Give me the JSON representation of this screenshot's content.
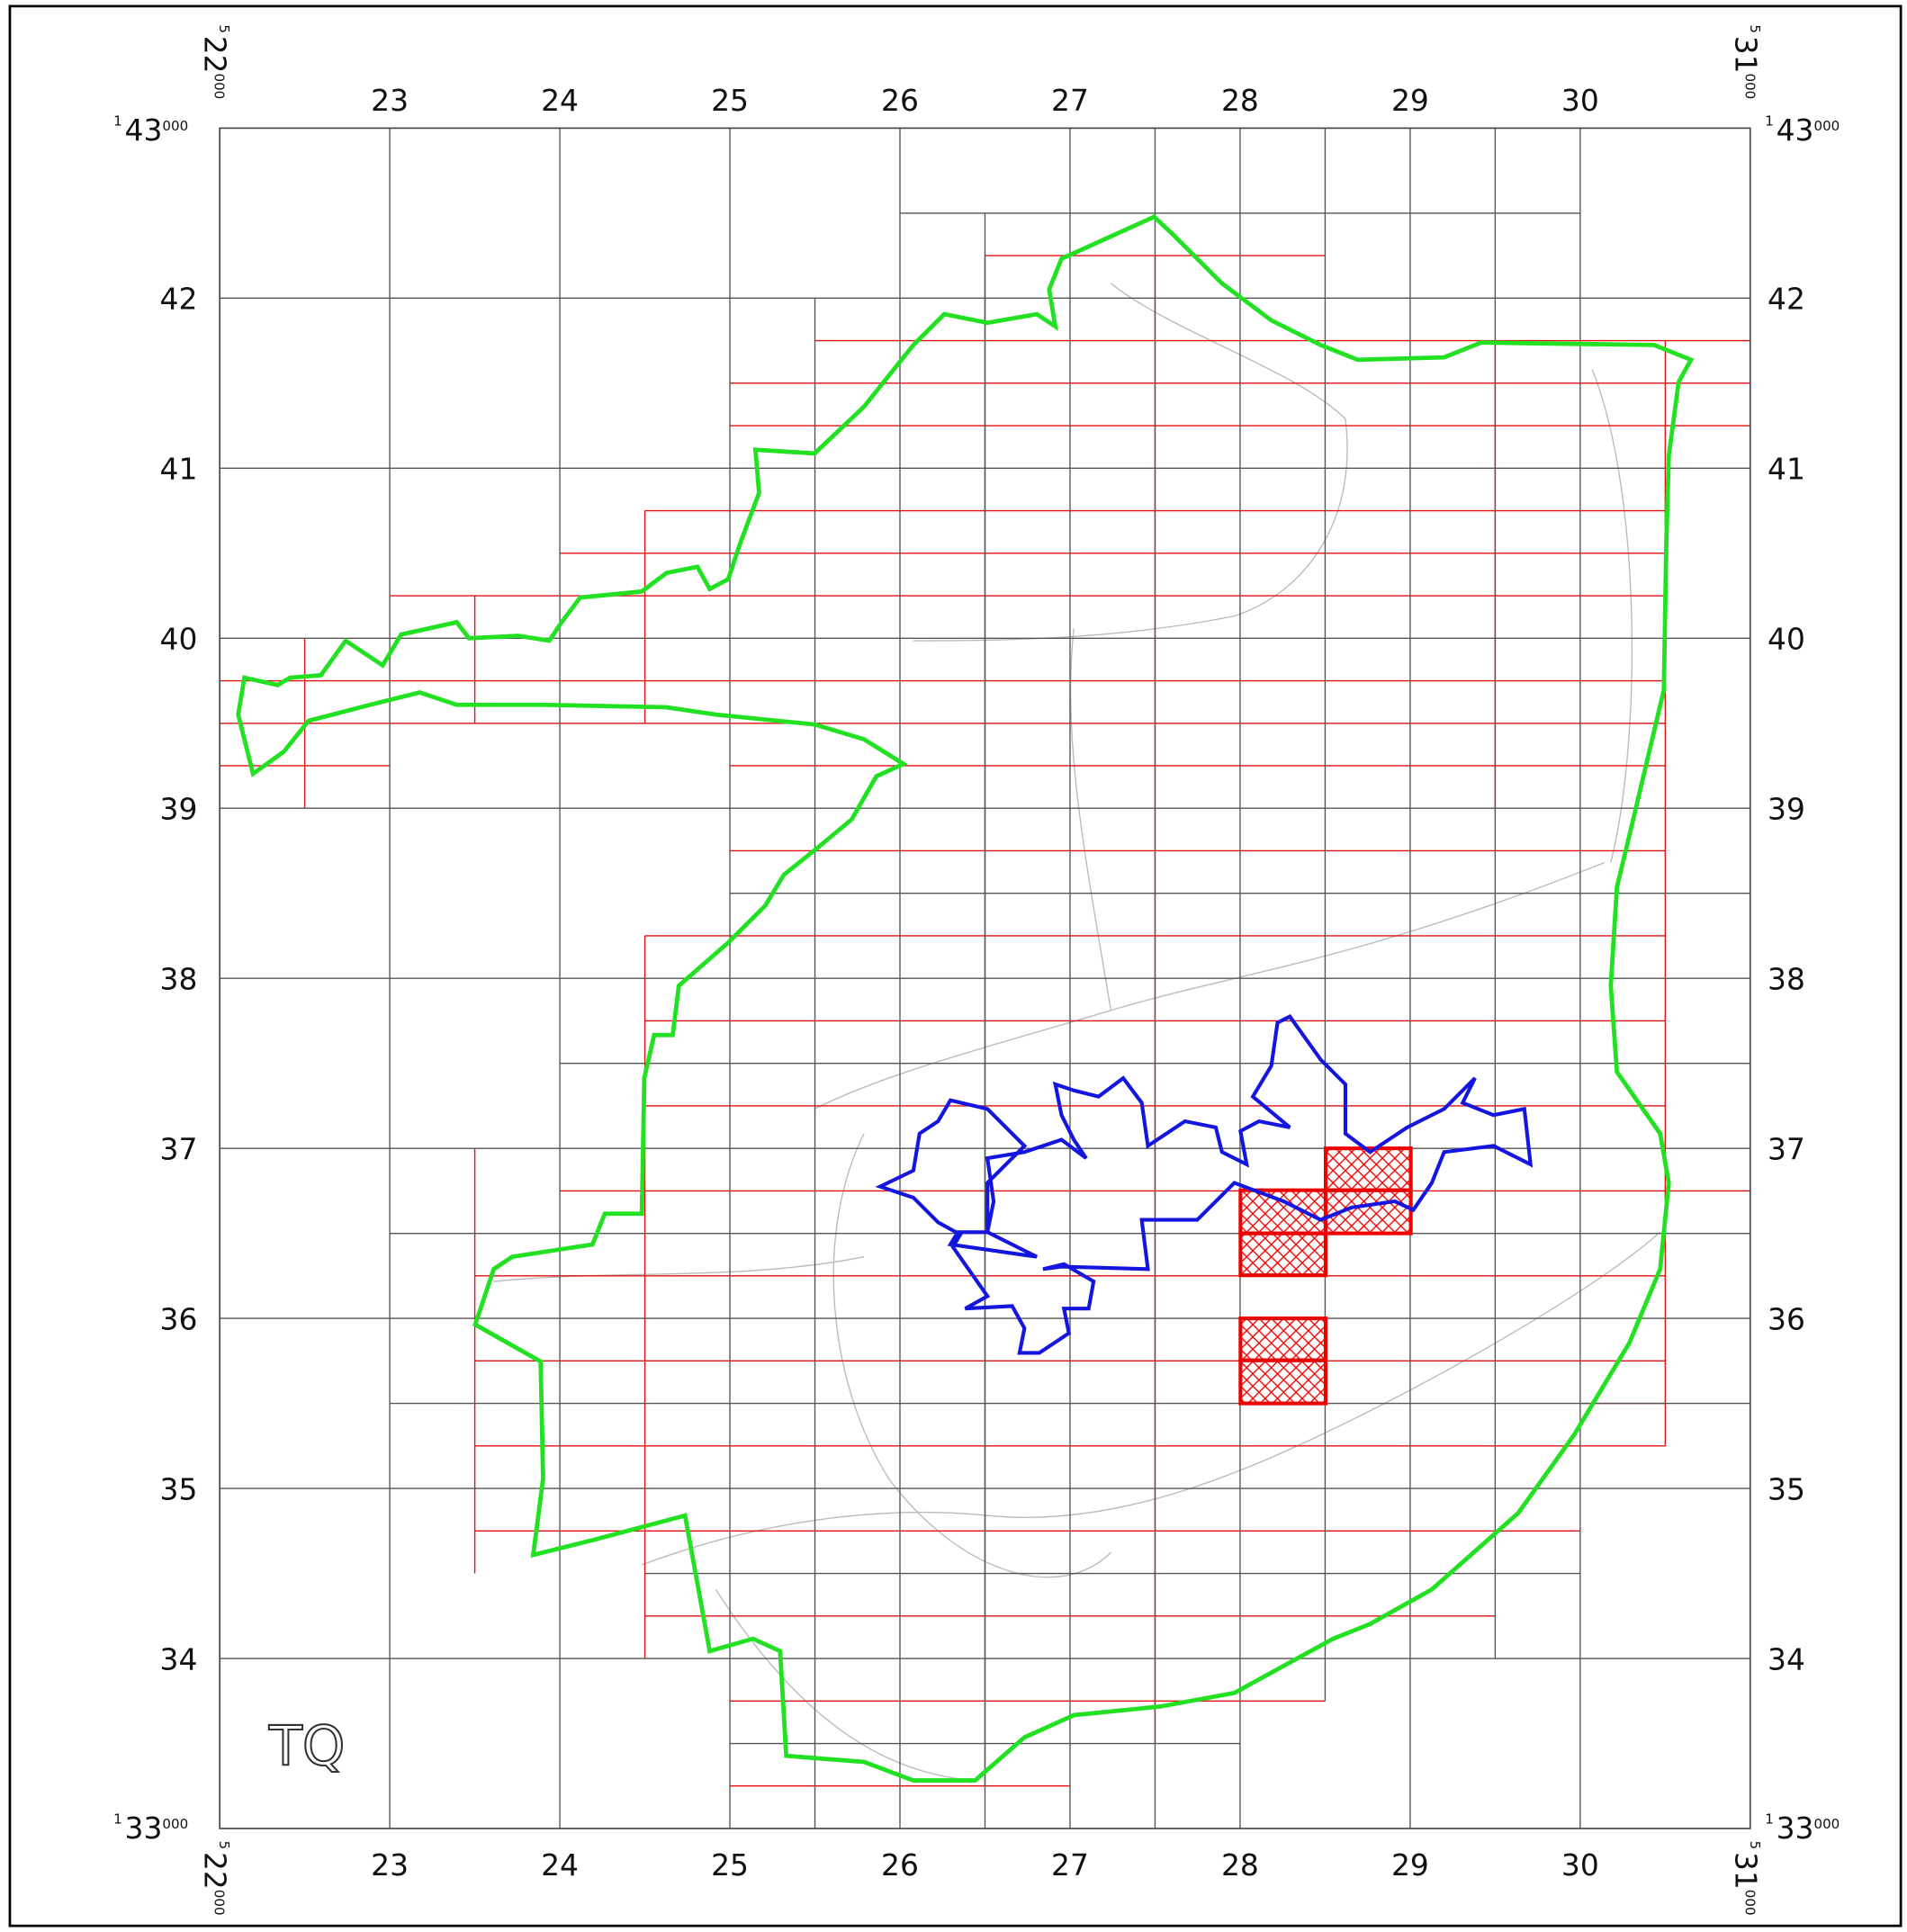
{
  "grid_labels": {
    "top": [
      23,
      24,
      25,
      26,
      27,
      28,
      29,
      30
    ],
    "bottom": [
      23,
      24,
      25,
      26,
      27,
      28,
      29,
      30
    ],
    "left": [
      42,
      41,
      40,
      39,
      38,
      37,
      36,
      35,
      34
    ],
    "right": [
      42,
      41,
      40,
      39,
      38,
      37,
      36,
      35,
      34
    ]
  },
  "corner_labels": {
    "top_left_easting": {
      "prefix": "5",
      "main": "22",
      "suffix": "000"
    },
    "top_left_northing": {
      "prefix": "1",
      "main": "43",
      "suffix": "000"
    },
    "top_right_easting": {
      "prefix": "5",
      "main": "31",
      "suffix": "000"
    },
    "top_right_northing": {
      "prefix": "1",
      "main": "43",
      "suffix": "000"
    },
    "bottom_left_easting": {
      "prefix": "5",
      "main": "22",
      "suffix": "000"
    },
    "bottom_left_northing": {
      "prefix": "1",
      "main": "33",
      "suffix": "000"
    },
    "bottom_right_easting": {
      "prefix": "5",
      "main": "31",
      "suffix": "000"
    },
    "bottom_right_northing": {
      "prefix": "1",
      "main": "33",
      "suffix": "000"
    }
  },
  "sheet_label": "TQ"
}
